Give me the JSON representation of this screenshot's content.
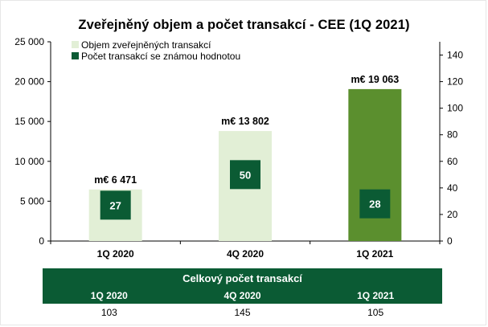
{
  "chart_data": {
    "type": "bar",
    "title": "Zveřejněný objem a počet transakcí - CEE (1Q 2021)",
    "categories": [
      "1Q 2020",
      "4Q 2020",
      "1Q 2021"
    ],
    "series": [
      {
        "name": "Objem zveřejněných transakcí",
        "axis": "left",
        "values": [
          6471,
          13802,
          19063
        ],
        "labels": [
          "m€ 6 471",
          "m€ 13 802",
          "m€ 19 063"
        ],
        "colors": [
          "#e2efd6",
          "#e2efd6",
          "#5b8f2e"
        ]
      },
      {
        "name": "Počet transakcí se známou hodnotou",
        "axis": "right",
        "values": [
          27,
          50,
          28
        ],
        "color": "#0b5b34"
      }
    ],
    "y_left": {
      "ylim": [
        0,
        25000
      ],
      "ticks": [
        0,
        5000,
        10000,
        15000,
        20000,
        25000
      ],
      "tick_labels": [
        "0",
        "5 000",
        "10 000",
        "15 000",
        "20 000",
        "25 000"
      ]
    },
    "y_right": {
      "ylim": [
        0,
        150
      ],
      "ticks": [
        0,
        20,
        40,
        60,
        80,
        100,
        120,
        140
      ],
      "tick_labels": [
        "0",
        "20",
        "40",
        "60",
        "80",
        "100",
        "120",
        "140"
      ]
    },
    "legend_position": "top-left",
    "grid": false
  },
  "summary_table": {
    "title": "Celkový počet transakcí",
    "columns": [
      "1Q 2020",
      "4Q 2020",
      "1Q 2021"
    ],
    "values": [
      "103",
      "145",
      "105"
    ],
    "header_color": "#0b5b34"
  }
}
